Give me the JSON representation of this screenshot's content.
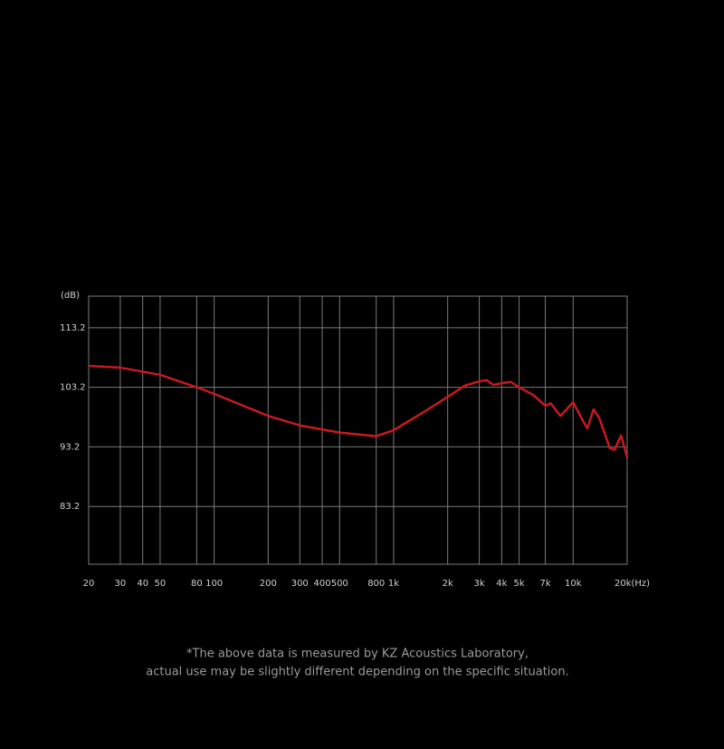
{
  "chart_data": {
    "type": "line",
    "ylabel": "(dB)",
    "xscale": "log",
    "grid": true,
    "xlim": [
      20,
      20000
    ],
    "ylim": [
      73.5,
      118.5
    ],
    "xticks": [
      20,
      30,
      40,
      50,
      80,
      100,
      200,
      300,
      400,
      500,
      800,
      {
        "value": 1000,
        "label": "1k"
      },
      {
        "value": 2000,
        "label": "2k"
      },
      {
        "value": 3000,
        "label": "3k"
      },
      {
        "value": 4000,
        "label": "4k"
      },
      {
        "value": 5000,
        "label": "5k"
      },
      {
        "value": 7000,
        "label": "7k"
      },
      {
        "value": 10000,
        "label": "10k"
      },
      {
        "value": 20000,
        "label": "20k(Hz)"
      }
    ],
    "yticks": [
      113.2,
      103.2,
      93.2,
      83.2
    ],
    "x": [
      20,
      30,
      50,
      80,
      100,
      200,
      300,
      500,
      800,
      1000,
      1500,
      2000,
      2500,
      3000,
      3300,
      3600,
      4000,
      4500,
      5000,
      6000,
      7000,
      7500,
      8500,
      10000,
      11000,
      12000,
      13000,
      14000,
      16000,
      17000,
      18500,
      20000
    ],
    "series": [
      {
        "color": "#c8191e",
        "values": [
          106.8,
          106.5,
          105.3,
          103.2,
          102.1,
          98.4,
          96.8,
          95.6,
          95.0,
          96.0,
          99.2,
          101.6,
          103.5,
          104.2,
          104.4,
          103.6,
          103.9,
          104.1,
          103.2,
          101.9,
          100.1,
          100.5,
          98.4,
          100.7,
          98.3,
          96.3,
          99.5,
          98.0,
          93.0,
          92.7,
          95.1,
          91.4
        ]
      }
    ],
    "footnote": [
      "*The above data is measured by KZ Acoustics Laboratory,",
      "actual use may be slightly different depending on the specific situation."
    ]
  }
}
